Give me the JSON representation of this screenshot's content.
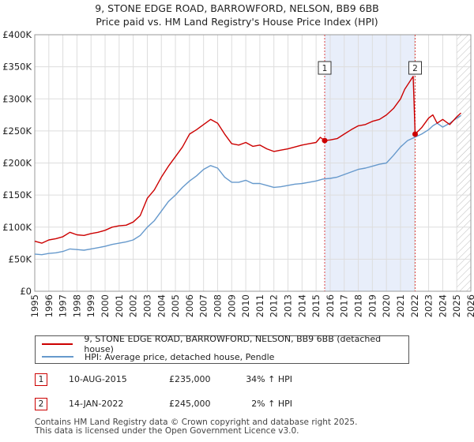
{
  "chart_data": {
    "type": "line",
    "title": "9, STONE EDGE ROAD, BARROWFORD, NELSON, BB9 6BB",
    "subtitle": "Price paid vs. HM Land Registry's House Price Index (HPI)",
    "xlim": [
      1995,
      2026
    ],
    "ylim": [
      0,
      400000
    ],
    "x_ticks": [
      "1995",
      "1996",
      "1997",
      "1998",
      "1999",
      "2000",
      "2001",
      "2002",
      "2003",
      "2004",
      "2005",
      "2006",
      "2007",
      "2008",
      "2009",
      "2010",
      "2011",
      "2012",
      "2013",
      "2014",
      "2015",
      "2016",
      "2017",
      "2018",
      "2019",
      "2020",
      "2021",
      "2022",
      "2023",
      "2024",
      "2025",
      "2026"
    ],
    "y_ticks": [
      {
        "value": 0,
        "label": "£0"
      },
      {
        "value": 50000,
        "label": "£50K"
      },
      {
        "value": 100000,
        "label": "£100K"
      },
      {
        "value": 150000,
        "label": "£150K"
      },
      {
        "value": 200000,
        "label": "£200K"
      },
      {
        "value": 250000,
        "label": "£250K"
      },
      {
        "value": 300000,
        "label": "£300K"
      },
      {
        "value": 350000,
        "label": "£350K"
      },
      {
        "value": 400000,
        "label": "£400K"
      }
    ],
    "grid": true,
    "shaded_region": {
      "from": 2015.61,
      "to": 2022.04
    },
    "hatched_after": 2025.0,
    "series": [
      {
        "name": "9, STONE EDGE ROAD, BARROWFORD, NELSON, BB9 6BB (detached house)",
        "color": "#cc0000",
        "x": [
          1995.0,
          1995.5,
          1996.0,
          1996.5,
          1997.0,
          1997.5,
          1998.0,
          1998.5,
          1999.0,
          1999.5,
          2000.0,
          2000.5,
          2001.0,
          2001.5,
          2002.0,
          2002.5,
          2003.0,
          2003.5,
          2004.0,
          2004.5,
          2005.0,
          2005.5,
          2006.0,
          2006.5,
          2007.0,
          2007.5,
          2008.0,
          2008.5,
          2009.0,
          2009.5,
          2010.0,
          2010.5,
          2011.0,
          2011.5,
          2012.0,
          2012.5,
          2013.0,
          2013.5,
          2014.0,
          2014.5,
          2015.0,
          2015.3,
          2015.61,
          2016.0,
          2016.5,
          2017.0,
          2017.5,
          2018.0,
          2018.5,
          2019.0,
          2019.5,
          2020.0,
          2020.5,
          2021.0,
          2021.3,
          2021.6,
          2021.9,
          2022.04,
          2022.5,
          2023.0,
          2023.3,
          2023.6,
          2024.0,
          2024.5,
          2025.0,
          2025.3
        ],
        "values": [
          78000,
          75000,
          80000,
          82000,
          85000,
          92000,
          88000,
          87000,
          90000,
          92000,
          95000,
          100000,
          102000,
          103000,
          108000,
          118000,
          145000,
          158000,
          178000,
          195000,
          210000,
          225000,
          245000,
          252000,
          260000,
          268000,
          262000,
          245000,
          230000,
          228000,
          232000,
          226000,
          228000,
          222000,
          218000,
          220000,
          222000,
          225000,
          228000,
          230000,
          232000,
          240000,
          235000,
          236000,
          238000,
          245000,
          252000,
          258000,
          260000,
          265000,
          268000,
          275000,
          285000,
          300000,
          315000,
          325000,
          335000,
          245000,
          255000,
          270000,
          275000,
          262000,
          268000,
          260000,
          272000,
          278000
        ]
      },
      {
        "name": "HPI: Average price, detached house, Pendle",
        "color": "#6699cc",
        "x": [
          1995.0,
          1995.5,
          1996.0,
          1996.5,
          1997.0,
          1997.5,
          1998.0,
          1998.5,
          1999.0,
          1999.5,
          2000.0,
          2000.5,
          2001.0,
          2001.5,
          2002.0,
          2002.5,
          2003.0,
          2003.5,
          2004.0,
          2004.5,
          2005.0,
          2005.5,
          2006.0,
          2006.5,
          2007.0,
          2007.5,
          2008.0,
          2008.5,
          2009.0,
          2009.5,
          2010.0,
          2010.5,
          2011.0,
          2011.5,
          2012.0,
          2012.5,
          2013.0,
          2013.5,
          2014.0,
          2014.5,
          2015.0,
          2015.5,
          2016.0,
          2016.5,
          2017.0,
          2017.5,
          2018.0,
          2018.5,
          2019.0,
          2019.5,
          2020.0,
          2020.5,
          2021.0,
          2021.5,
          2022.0,
          2022.5,
          2023.0,
          2023.3,
          2023.6,
          2024.0,
          2024.5,
          2025.0,
          2025.3
        ],
        "values": [
          58000,
          57000,
          59000,
          60000,
          62000,
          66000,
          65000,
          64000,
          66000,
          68000,
          70000,
          73000,
          75000,
          77000,
          80000,
          87000,
          100000,
          110000,
          125000,
          140000,
          150000,
          162000,
          172000,
          180000,
          190000,
          196000,
          192000,
          178000,
          170000,
          170000,
          173000,
          168000,
          168000,
          165000,
          162000,
          163000,
          165000,
          167000,
          168000,
          170000,
          172000,
          175000,
          176000,
          178000,
          182000,
          186000,
          190000,
          192000,
          195000,
          198000,
          200000,
          212000,
          225000,
          235000,
          240000,
          245000,
          252000,
          258000,
          262000,
          256000,
          262000,
          270000,
          274000
        ]
      }
    ],
    "markers": [
      {
        "label": "1",
        "x": 2015.61,
        "y": 235000
      },
      {
        "label": "2",
        "x": 2022.04,
        "y": 245000
      }
    ]
  },
  "legend": {
    "items": [
      "9, STONE EDGE ROAD, BARROWFORD, NELSON, BB9 6BB (detached house)",
      "HPI: Average price, detached house, Pendle"
    ]
  },
  "transactions": [
    {
      "num": "1",
      "date": "10-AUG-2015",
      "price": "£235,000",
      "hpi": "34% ↑ HPI"
    },
    {
      "num": "2",
      "date": "14-JAN-2022",
      "price": "£245,000",
      "hpi": "2% ↑ HPI"
    }
  ],
  "footer": {
    "line1": "Contains HM Land Registry data © Crown copyright and database right 2025.",
    "line2": "This data is licensed under the Open Government Licence v3.0."
  },
  "colors": {
    "property": "#cc0000",
    "hpi": "#6699cc",
    "shade": "#e8eefa",
    "marker_line": "#dd4444"
  }
}
